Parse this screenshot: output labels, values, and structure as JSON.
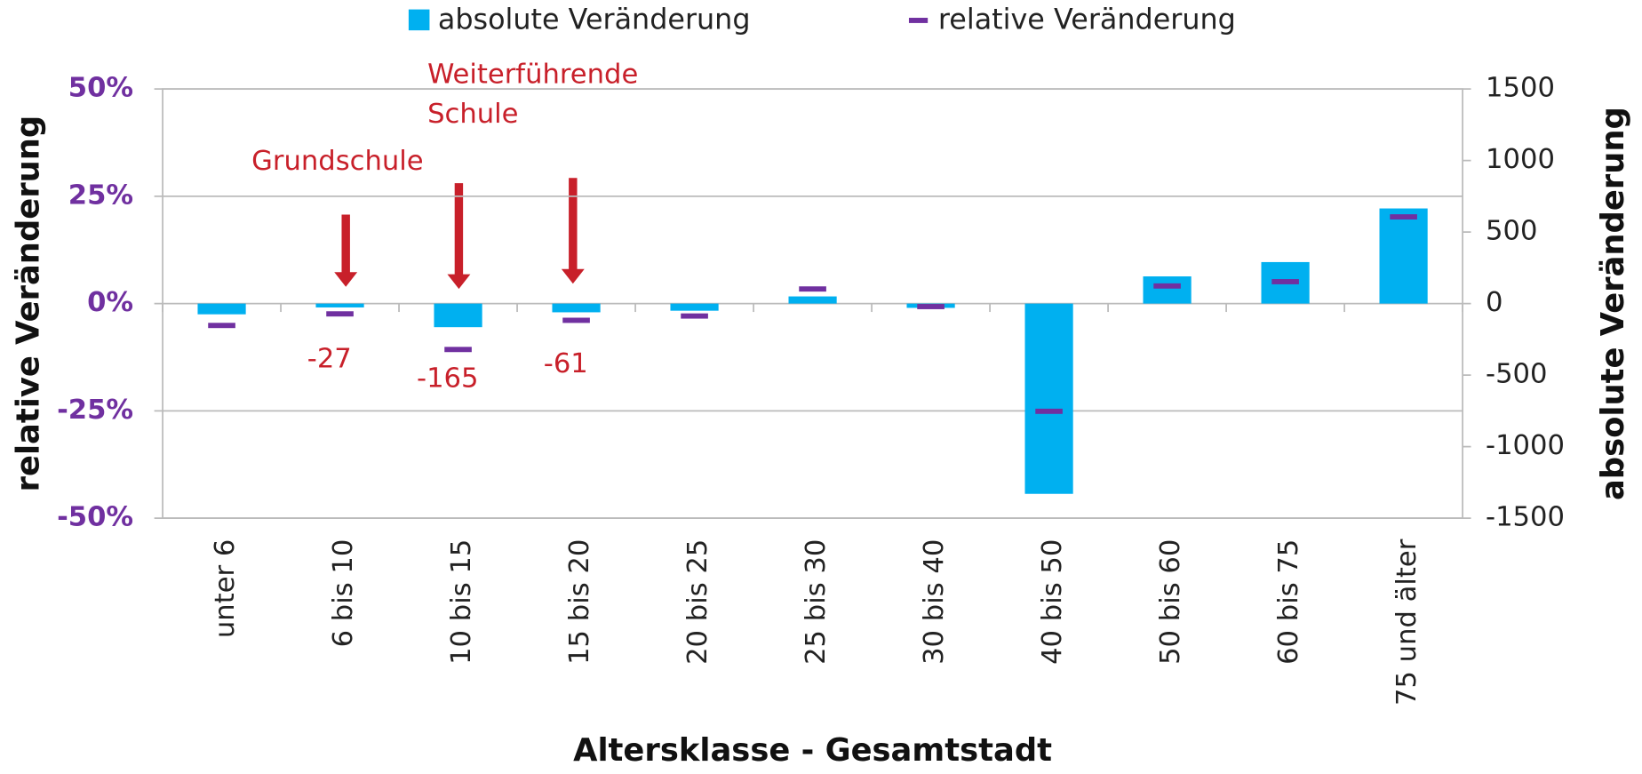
{
  "chart_data": {
    "type": "bar_marker",
    "categories": [
      "unter 6",
      "6 bis 10",
      "10 bis 15",
      "15 bis 20",
      "20 bis 25",
      "25 bis 30",
      "30 bis 40",
      "40 bis 50",
      "50 bis 60",
      "60 bis 75",
      "75 und älter"
    ],
    "series": [
      {
        "name": "absolute Veränderung",
        "color": "#00b0f0",
        "axis": "y2",
        "values": [
          -75,
          -27,
          -165,
          -61,
          -50,
          50,
          -30,
          -1330,
          190,
          290,
          665
        ],
        "value_labels": [
          null,
          "-27",
          "-165",
          "-61",
          null,
          null,
          null,
          null,
          null,
          null,
          null
        ]
      },
      {
        "name": "relative Veränderung",
        "color": "#7030a0",
        "values": [
          -5.1,
          -2.4,
          -10.7,
          -3.9,
          -2.9,
          3.4,
          -0.7,
          -25.1,
          4.1,
          5.1,
          20.2
        ]
      }
    ],
    "ylabel": "relative Veränderung",
    "y2label": "absolute Veränderung",
    "xlabel": "Altersklasse - Gesamtstadt",
    "ylim": [
      -50,
      50
    ],
    "yticks": [
      {
        "value": -50,
        "label": "-50%"
      },
      {
        "value": -25,
        "label": "-25%"
      },
      {
        "value": 0,
        "label": "0%"
      },
      {
        "value": 25,
        "label": "25%"
      },
      {
        "value": 50,
        "label": "50%"
      }
    ],
    "y2lim": [
      -1500,
      1500
    ],
    "y2ticks": [
      -1500,
      -1000,
      -500,
      0,
      500,
      1000,
      1500
    ],
    "grid": true,
    "legend": "top",
    "annotations": [
      {
        "lines": [
          "Grundschule"
        ],
        "category": 1
      },
      {
        "lines": [
          "Weiterführende",
          "Schule"
        ],
        "category": 2
      }
    ]
  }
}
